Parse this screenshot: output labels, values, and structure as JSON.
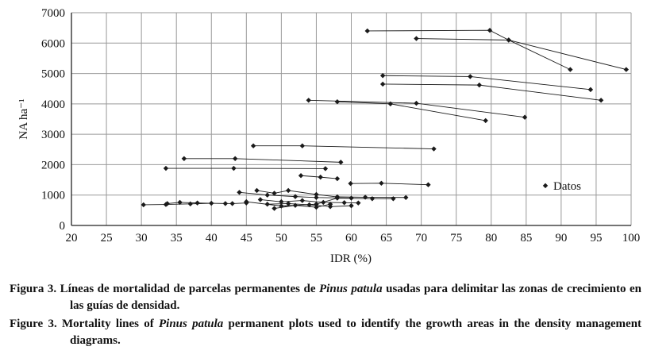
{
  "chart_data": {
    "type": "scatter",
    "xlabel": "IDR (%)",
    "ylabel": "NA ha⁻¹",
    "xlim": [
      20,
      100
    ],
    "xticks": [
      20,
      25,
      30,
      35,
      40,
      45,
      50,
      55,
      60,
      65,
      70,
      75,
      80,
      85,
      90,
      95,
      100
    ],
    "ylim": [
      0,
      7000
    ],
    "yticks": [
      0,
      1000,
      2000,
      3000,
      4000,
      5000,
      6000,
      7000
    ],
    "grid": true,
    "legend": "right",
    "series": [
      {
        "name": "Datos",
        "color": "#1a1a1a",
        "x": [
          62.3,
          79.8,
          82.5,
          91.3,
          null,
          69.3,
          82.5,
          99.3,
          null,
          64.5,
          77,
          94.2,
          null,
          64.5,
          78.3,
          95.7,
          null,
          53.9,
          69.3,
          84.8,
          null,
          58,
          65.6,
          79.2,
          null,
          46,
          53,
          71.8,
          null,
          36.1,
          43.4,
          58.5,
          null,
          33.5,
          43.2,
          56.3,
          null,
          52.8,
          55.6,
          58,
          null,
          59.9,
          64.3,
          71,
          null,
          30.3,
          33.5,
          37,
          40,
          43,
          45,
          null,
          33.7,
          35.5,
          38,
          42,
          null,
          44,
          48,
          52,
          55,
          60,
          null,
          46.5,
          49,
          51,
          55,
          58,
          62,
          67.8,
          null,
          49,
          52,
          55,
          57,
          null,
          47,
          50,
          53,
          56,
          59,
          61,
          null,
          48,
          51,
          54,
          57,
          60,
          null,
          45,
          50,
          55,
          58,
          63,
          66
        ],
        "values": [
          6400,
          6420,
          6100,
          5130,
          null,
          6150,
          6100,
          5130,
          null,
          4930,
          4900,
          4470,
          null,
          4650,
          4620,
          4120,
          null,
          4120,
          4020,
          3560,
          null,
          4070,
          4000,
          3450,
          null,
          2620,
          2620,
          2520,
          null,
          2200,
          2200,
          2080,
          null,
          1880,
          1880,
          1870,
          null,
          1640,
          1590,
          1540,
          null,
          1380,
          1390,
          1340,
          null,
          680,
          690,
          710,
          730,
          720,
          740,
          null,
          720,
          760,
          740,
          720,
          null,
          1090,
          1000,
          950,
          920,
          900,
          null,
          1150,
          1060,
          1150,
          1020,
          940,
          930,
          920,
          null,
          560,
          660,
          600,
          700,
          null,
          850,
          780,
          820,
          760,
          750,
          740,
          null,
          700,
          720,
          680,
          620,
          650,
          null,
          780,
          640,
          700,
          900,
          880,
          880
        ]
      }
    ]
  },
  "captions": [
    {
      "label": "Figura 3.",
      "before": "Líneas de mortalidad de parcelas permanentes de",
      "italic": "Pinus patula",
      "after": "usadas para delimitar las zonas de crecimiento en las guías de densidad."
    },
    {
      "label": "Figure 3.",
      "before": "Mortality lines of",
      "italic": "Pinus patula",
      "after": "permanent plots used to identify the growth areas in the density management diagrams."
    }
  ]
}
